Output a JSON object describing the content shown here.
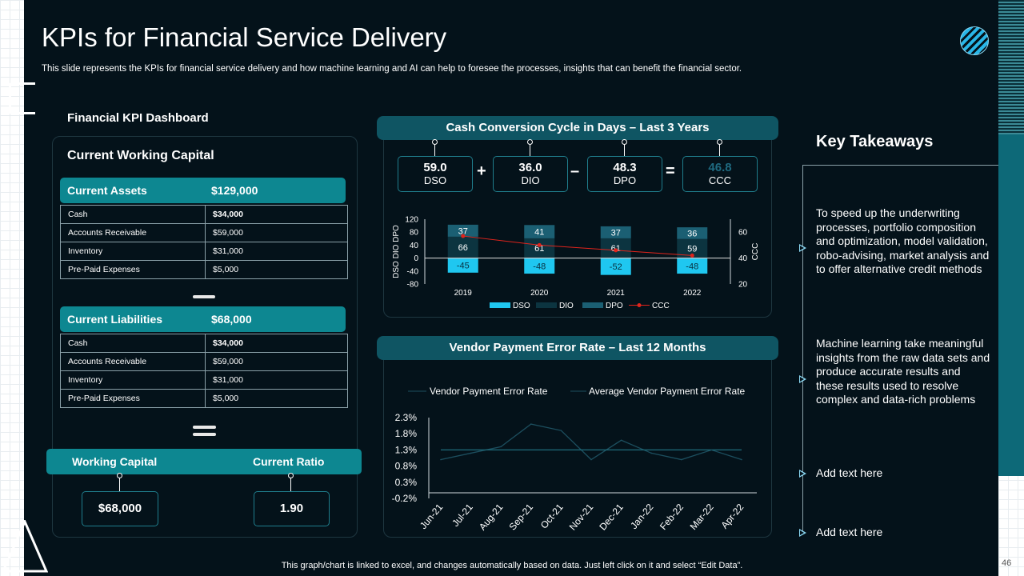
{
  "header": {
    "title": "KPIs for Financial Service Delivery",
    "subtitle": "This slide represents the KPIs for financial service delivery and how machine learning and AI can help to foresee the processes, insights that can benefit the financial sector."
  },
  "dashboard": {
    "title": "Financial KPI Dashboard",
    "section_title": "Current Working Capital",
    "assets": {
      "label": "Current Assets",
      "total": "$129,000",
      "rows": [
        [
          "Cash",
          "$34,000"
        ],
        [
          "Accounts Receivable",
          "$59,000"
        ],
        [
          "Inventory",
          "$31,000"
        ],
        [
          "Pre-Paid Expenses",
          "$5,000"
        ]
      ]
    },
    "liabilities": {
      "label": "Current Liabilities",
      "total": "$68,000",
      "rows": [
        [
          "Cash",
          "$34,000"
        ],
        [
          "Accounts Receivable",
          "$59,000"
        ],
        [
          "Inventory",
          "$31,000"
        ],
        [
          "Pre-Paid Expenses",
          "$5,000"
        ]
      ]
    },
    "working_capital": {
      "label": "Working Capital",
      "value": "$68,000"
    },
    "current_ratio": {
      "label": "Current Ratio",
      "value": "1.90"
    }
  },
  "ccc_summary": {
    "title": "Cash Conversion Cycle in Days – Last 3 Years",
    "dso": {
      "value": "59.0",
      "label": "DSO"
    },
    "dio": {
      "value": "36.0",
      "label": "DIO"
    },
    "dpo": {
      "value": "48.3",
      "label": "DPO"
    },
    "ccc": {
      "value": "46.8",
      "label": "CCC"
    },
    "ops": [
      "+",
      "–",
      "="
    ]
  },
  "vendor": {
    "title": "Vendor Payment Error Rate – Last 12 Months"
  },
  "takeaways": {
    "title": "Key Takeaways",
    "items": [
      "To speed up the underwriting processes, portfolio composition and optimization, model validation, robo-advising, market analysis and to offer alternative credit methods",
      "Machine learning take meaningful insights from the raw data sets and produce accurate results and these results used to resolve complex and data-rich problems",
      "Add text here",
      "Add text here"
    ]
  },
  "footer": {
    "note": "This graph/chart is linked to excel,  and changes automatically based on data. Just left click on it and select “Edit Data”.",
    "page": "46"
  },
  "colors": {
    "dso": "#1fc7f0",
    "dio": "#0c3440",
    "dpo": "#1b5f73",
    "ccc": "#e0241c",
    "teal": "#0d8791",
    "line": "#1c4e5e"
  },
  "chart_data": [
    {
      "type": "bar",
      "title": "Cash Conversion Cycle",
      "categories": [
        "2019",
        "2020",
        "2021",
        "2022"
      ],
      "series": [
        {
          "name": "DSO",
          "values": [
            -45,
            -48,
            -52,
            -48
          ]
        },
        {
          "name": "DIO",
          "values": [
            66,
            61,
            61,
            59
          ]
        },
        {
          "name": "DPO",
          "values": [
            37,
            41,
            37,
            36
          ]
        },
        {
          "name": "CCC",
          "type": "line",
          "axis": "right",
          "values": [
            57,
            50,
            46,
            42
          ]
        }
      ],
      "ylabel": "DSO  DIO  DPO",
      "y2label": "CCC",
      "ylim": [
        -80,
        120
      ],
      "yticks": [
        -80,
        -40,
        0,
        40,
        80,
        120
      ],
      "yticklabels": [
        "-80",
        "-40",
        "0",
        "40",
        "80",
        "120"
      ],
      "y2lim": [
        20,
        70
      ],
      "y2ticks": [
        20,
        40,
        60
      ],
      "legend": "bottom"
    },
    {
      "type": "line",
      "title": "Vendor Payment Error Rate",
      "categories": [
        "Jun-21",
        "Jul-21",
        "Aug-21",
        "Sep-21",
        "Oct-21",
        "Nov-21",
        "Dec-21",
        "Jan-22",
        "Feb-22",
        "Mar-22",
        "Apr-22"
      ],
      "series": [
        {
          "name": "Vendor Payment Error Rate",
          "values": [
            1.0,
            1.2,
            1.4,
            2.1,
            1.9,
            1.0,
            1.6,
            1.2,
            1.0,
            1.3,
            1.0
          ]
        },
        {
          "name": "Average Vendor Payment Error Rate",
          "values": [
            1.3,
            1.3,
            1.3,
            1.3,
            1.3,
            1.3,
            1.3,
            1.3,
            1.3,
            1.3,
            1.3
          ]
        }
      ],
      "ylim": [
        -0.2,
        2.3
      ],
      "yticks": [
        -0.2,
        0.3,
        0.8,
        1.3,
        1.8,
        2.3
      ],
      "yticklabels": [
        "-0.2%",
        "0.3%",
        "0.8%",
        "1.3%",
        "1.8%",
        "2.3%"
      ],
      "legend": "top"
    }
  ]
}
